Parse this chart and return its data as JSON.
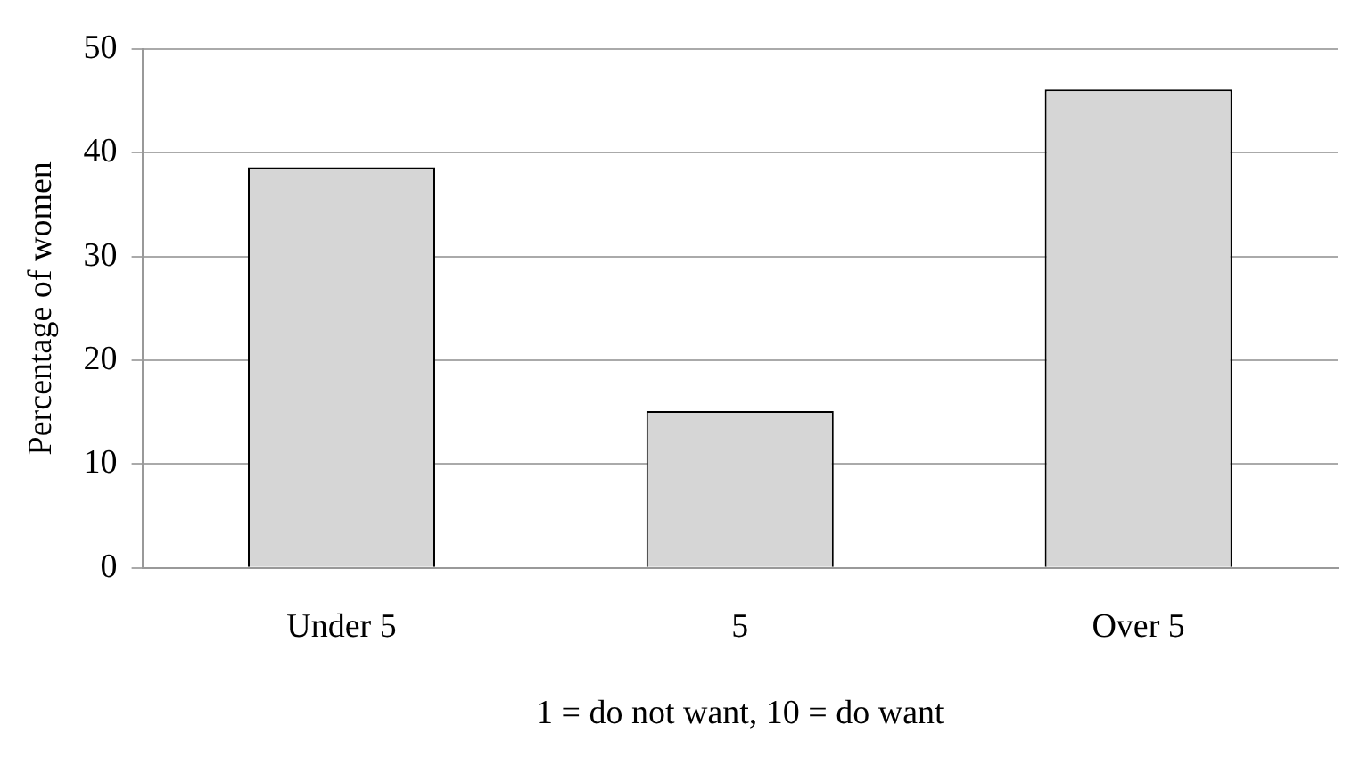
{
  "chart_data": {
    "type": "bar",
    "ylabel": "Percentage of women",
    "xlabel": "1 = do not want, 10 = do want",
    "categories": [
      "Under 5",
      "5",
      "Over 5"
    ],
    "values": [
      38.6,
      15.1,
      46.1
    ],
    "color": "#d6d6d6",
    "ylim": [
      0,
      50
    ],
    "yticks": [
      0,
      10,
      20,
      30,
      40,
      50
    ],
    "grid": "y",
    "legend": false
  }
}
